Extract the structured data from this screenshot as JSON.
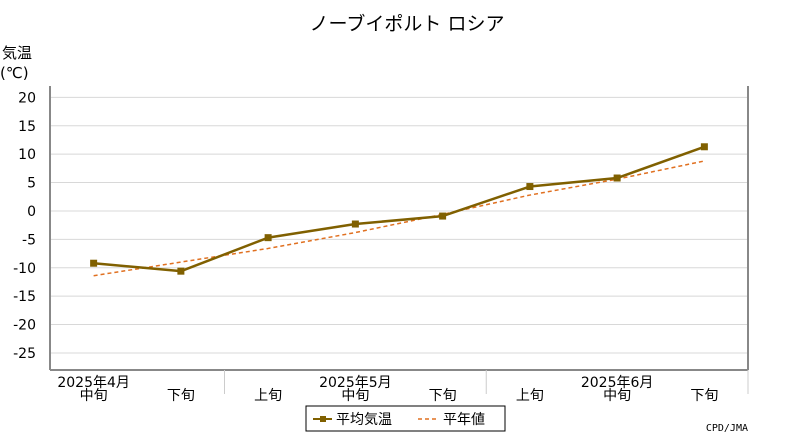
{
  "chart_data": {
    "type": "line",
    "title": "ノーブイポルト ロシア",
    "ylabel": "気温",
    "yunit": "(℃)",
    "ylim": [
      -28,
      22
    ],
    "yticks": [
      20,
      15,
      10,
      5,
      0,
      -5,
      -10,
      -15,
      -20,
      -25
    ],
    "categories": [
      "中旬",
      "下旬",
      "上旬",
      "中旬",
      "下旬",
      "上旬",
      "中旬",
      "下旬"
    ],
    "month_labels": [
      {
        "label": "2025年4月",
        "at": 0
      },
      {
        "label": "2025年5月",
        "at": 3
      },
      {
        "label": "2025年6月",
        "at": 6
      }
    ],
    "series": [
      {
        "name": "平均気温",
        "values": [
          -9.2,
          -10.6,
          -4.7,
          -2.3,
          -0.9,
          4.3,
          5.8,
          11.3
        ],
        "color": "#806000",
        "style": "solid",
        "marker": "square"
      },
      {
        "name": "平年値",
        "values": [
          -11.4,
          -9.0,
          -6.6,
          -3.8,
          -0.6,
          2.8,
          5.6,
          8.8
        ],
        "color": "#e07020",
        "style": "dashed"
      }
    ],
    "grid": true,
    "legend": "bottom",
    "credit": "CPD/JMA"
  }
}
